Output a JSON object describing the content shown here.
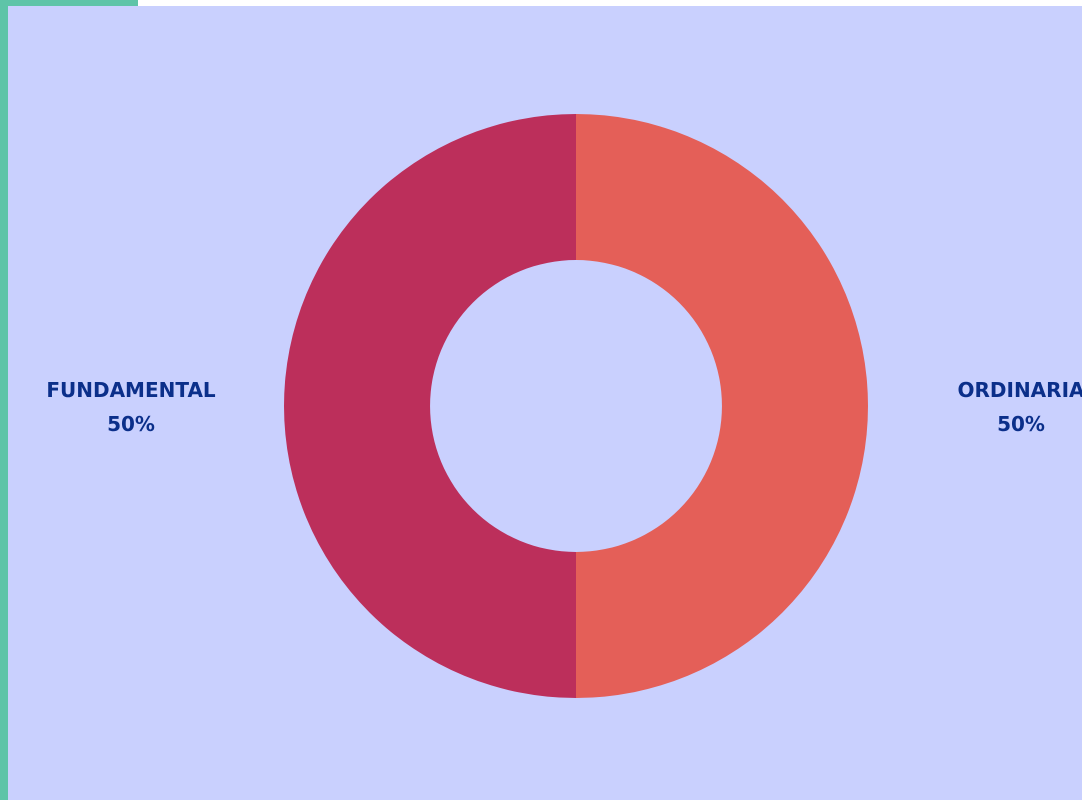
{
  "colors": {
    "background": "#c9d0fe",
    "frame": "#5ec4a8",
    "label_text": "#0b2f8a"
  },
  "chart_data": {
    "type": "pie",
    "variant": "donut",
    "title": "",
    "slices": [
      {
        "label": "ORDINARIA",
        "value": 50,
        "percent_label": "50%",
        "color": "#e45f58"
      },
      {
        "label": "FUNDAMENTAL",
        "value": 50,
        "percent_label": "50%",
        "color": "#bc2f5b"
      }
    ],
    "start_angle_deg": 0,
    "direction": "clockwise",
    "legend": "none"
  }
}
